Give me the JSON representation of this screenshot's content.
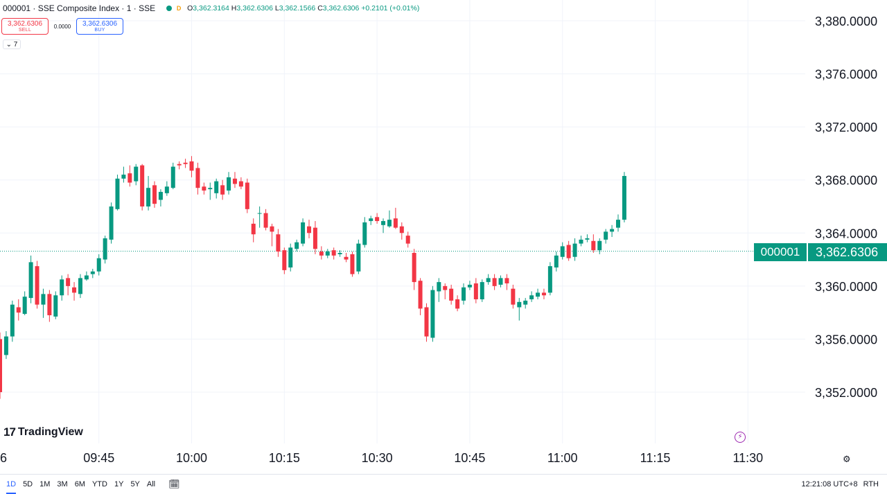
{
  "legend": {
    "symbol": "000001 · SSE Composite Index · 1 · SSE",
    "badge": "D",
    "o_label": "O",
    "o": "3,362.3164",
    "h_label": "H",
    "h": "3,362.6306",
    "l_label": "L",
    "l": "3,362.1566",
    "c_label": "C",
    "c": "3,362.6306",
    "change": "+0.2101 (+0.01%)",
    "status_color": "#089981"
  },
  "trade": {
    "sell_price": "3,362.6306",
    "sell_label": "SELL",
    "spread": "0.0000",
    "buy_price": "3,362.6306",
    "buy_label": "BUY"
  },
  "collapse_label": "7",
  "brand": "TradingView",
  "last_price": {
    "symbol": "000001",
    "value": "3,362.6306"
  },
  "footer": {
    "ranges": [
      "1D",
      "5D",
      "1M",
      "3M",
      "6M",
      "YTD",
      "1Y",
      "5Y",
      "All"
    ],
    "active_range": "1D",
    "clock": "12:21:08 UTC+8",
    "session": "RTH"
  },
  "chart_data": {
    "type": "candlestick",
    "up_color": "#089981",
    "down_color": "#f23645",
    "ylim": [
      3348,
      3382
    ],
    "yticks": [
      3352,
      3356,
      3360,
      3364,
      3368,
      3372,
      3376,
      3380
    ],
    "ytick_labels": [
      "3,352.0000",
      "3,356.0000",
      "3,360.0000",
      "3,364.0000",
      "3,368.0000",
      "3,372.0000",
      "3,376.0000",
      "3,380.0000"
    ],
    "xticks": [
      {
        "i": 16,
        "label": "09:45"
      },
      {
        "i": 31,
        "label": "10:00"
      },
      {
        "i": 46,
        "label": "10:15"
      },
      {
        "i": 61,
        "label": "10:30"
      },
      {
        "i": 76,
        "label": "10:45"
      },
      {
        "i": 91,
        "label": "11:00"
      },
      {
        "i": 106,
        "label": "11:15"
      },
      {
        "i": 121,
        "label": "11:30"
      }
    ],
    "first_label": "6",
    "last_price": 3362.6306,
    "candles": [
      [
        3356.0,
        3352.0,
        3356.5,
        3351.5
      ],
      [
        3354.8,
        3356.2,
        3356.6,
        3354.5
      ],
      [
        3356.2,
        3358.6,
        3358.9,
        3355.8
      ],
      [
        3358.4,
        3358.0,
        3359.0,
        3357.4
      ],
      [
        3357.9,
        3359.2,
        3359.6,
        3357.8
      ],
      [
        3359.1,
        3361.8,
        3362.3,
        3358.7
      ],
      [
        3361.5,
        3358.6,
        3361.9,
        3358.3
      ],
      [
        3358.6,
        3359.4,
        3359.8,
        3357.6
      ],
      [
        3359.4,
        3357.8,
        3359.7,
        3357.3
      ],
      [
        3357.7,
        3359.3,
        3359.6,
        3357.5
      ],
      [
        3359.3,
        3360.5,
        3360.8,
        3358.9
      ],
      [
        3360.6,
        3360.0,
        3360.9,
        3359.3
      ],
      [
        3359.9,
        3359.5,
        3360.3,
        3358.9
      ],
      [
        3359.4,
        3360.6,
        3360.9,
        3359.1
      ],
      [
        3360.5,
        3360.8,
        3361.1,
        3360.4
      ],
      [
        3360.9,
        3361.1,
        3361.3,
        3360.6
      ],
      [
        3361.1,
        3362.1,
        3362.4,
        3360.8
      ],
      [
        3362.0,
        3363.6,
        3363.8,
        3361.7
      ],
      [
        3363.5,
        3366.0,
        3366.3,
        3363.2
      ],
      [
        3365.8,
        3368.1,
        3368.4,
        3365.7
      ],
      [
        3368.1,
        3368.4,
        3369.0,
        3367.8
      ],
      [
        3368.5,
        3367.8,
        3369.1,
        3367.5
      ],
      [
        3367.9,
        3369.0,
        3369.2,
        3367.6
      ],
      [
        3369.1,
        3366.0,
        3369.2,
        3365.7
      ],
      [
        3366.0,
        3367.4,
        3368.3,
        3365.7
      ],
      [
        3367.6,
        3366.2,
        3367.9,
        3365.9
      ],
      [
        3366.5,
        3367.1,
        3367.3,
        3366.0
      ],
      [
        3367.0,
        3367.5,
        3367.9,
        3366.8
      ],
      [
        3367.4,
        3369.0,
        3369.3,
        3367.3
      ],
      [
        3369.2,
        3369.1,
        3369.4,
        3368.8
      ],
      [
        3369.3,
        3369.2,
        3369.6,
        3368.9
      ],
      [
        3369.4,
        3368.7,
        3369.8,
        3368.2
      ],
      [
        3368.9,
        3367.4,
        3369.3,
        3366.9
      ],
      [
        3367.5,
        3367.2,
        3367.8,
        3366.9
      ],
      [
        3367.3,
        3367.4,
        3367.8,
        3366.5
      ],
      [
        3367.0,
        3367.9,
        3368.1,
        3366.6
      ],
      [
        3367.6,
        3366.9,
        3368.0,
        3366.5
      ],
      [
        3367.2,
        3368.2,
        3368.6,
        3366.9
      ],
      [
        3368.1,
        3367.7,
        3368.6,
        3367.4
      ],
      [
        3367.9,
        3367.5,
        3368.2,
        3367.3
      ],
      [
        3367.8,
        3365.8,
        3368.1,
        3365.5
      ],
      [
        3364.7,
        3363.9,
        3365.1,
        3363.3
      ],
      [
        3365.5,
        3365.5,
        3366.0,
        3364.4
      ],
      [
        3365.5,
        3364.4,
        3365.8,
        3364.2
      ],
      [
        3364.5,
        3364.1,
        3364.7,
        3363.0
      ],
      [
        3363.9,
        3362.6,
        3364.3,
        3362.2
      ],
      [
        3362.7,
        3361.2,
        3362.9,
        3360.9
      ],
      [
        3361.4,
        3362.9,
        3363.2,
        3361.1
      ],
      [
        3362.8,
        3363.3,
        3363.5,
        3362.6
      ],
      [
        3363.2,
        3364.8,
        3365.1,
        3363.0
      ],
      [
        3364.5,
        3364.0,
        3365.0,
        3363.6
      ],
      [
        3364.4,
        3362.8,
        3364.9,
        3362.4
      ],
      [
        3362.6,
        3362.3,
        3363.0,
        3362.0
      ],
      [
        3362.3,
        3362.6,
        3362.8,
        3362.1
      ],
      [
        3362.7,
        3362.3,
        3362.9,
        3362.0
      ],
      [
        3362.4,
        3362.5,
        3362.7,
        3362.2
      ],
      [
        3362.2,
        3362.0,
        3362.5,
        3361.8
      ],
      [
        3362.4,
        3360.9,
        3362.6,
        3360.7
      ],
      [
        3361.1,
        3363.2,
        3363.5,
        3360.9
      ],
      [
        3363.1,
        3364.8,
        3365.2,
        3362.9
      ],
      [
        3364.9,
        3365.1,
        3365.3,
        3364.6
      ],
      [
        3365.2,
        3364.9,
        3365.5,
        3364.7
      ],
      [
        3364.6,
        3364.9,
        3365.1,
        3364.0
      ],
      [
        3364.5,
        3365.0,
        3365.7,
        3364.4
      ],
      [
        3365.1,
        3364.4,
        3365.9,
        3364.3
      ],
      [
        3364.5,
        3364.0,
        3364.8,
        3363.5
      ],
      [
        3363.8,
        3363.2,
        3364.1,
        3362.9
      ],
      [
        3362.5,
        3360.3,
        3362.8,
        3359.7
      ],
      [
        3360.4,
        3358.3,
        3360.6,
        3357.8
      ],
      [
        3358.4,
        3356.2,
        3358.7,
        3355.8
      ],
      [
        3356.1,
        3359.7,
        3360.0,
        3355.8
      ],
      [
        3359.6,
        3360.3,
        3360.6,
        3358.8
      ],
      [
        3360.0,
        3359.7,
        3360.2,
        3359.0
      ],
      [
        3359.8,
        3358.9,
        3360.1,
        3358.6
      ],
      [
        3359.0,
        3358.3,
        3359.3,
        3358.1
      ],
      [
        3358.9,
        3359.9,
        3360.2,
        3358.6
      ],
      [
        3359.9,
        3360.1,
        3360.4,
        3359.7
      ],
      [
        3360.2,
        3359.0,
        3360.6,
        3358.7
      ],
      [
        3359.0,
        3360.3,
        3360.5,
        3358.8
      ],
      [
        3360.3,
        3360.6,
        3360.9,
        3360.1
      ],
      [
        3360.6,
        3360.0,
        3360.9,
        3359.7
      ],
      [
        3360.1,
        3360.6,
        3360.8,
        3359.9
      ],
      [
        3360.6,
        3360.2,
        3360.9,
        3359.7
      ],
      [
        3359.8,
        3358.6,
        3360.1,
        3358.3
      ],
      [
        3358.4,
        3358.8,
        3359.1,
        3357.4
      ],
      [
        3358.6,
        3358.9,
        3359.1,
        3358.3
      ],
      [
        3359.0,
        3359.3,
        3359.6,
        3358.8
      ],
      [
        3359.2,
        3359.5,
        3359.8,
        3359.0
      ],
      [
        3359.5,
        3359.3,
        3359.8,
        3359.0
      ],
      [
        3359.5,
        3361.5,
        3361.8,
        3359.3
      ],
      [
        3361.4,
        3362.3,
        3362.6,
        3361.1
      ],
      [
        3362.2,
        3363.0,
        3363.3,
        3362.0
      ],
      [
        3363.1,
        3362.1,
        3363.4,
        3361.9
      ],
      [
        3362.2,
        3363.2,
        3363.6,
        3361.9
      ],
      [
        3363.2,
        3363.5,
        3363.8,
        3363.0
      ],
      [
        3363.5,
        3363.6,
        3363.9,
        3363.3
      ],
      [
        3363.4,
        3362.7,
        3363.9,
        3362.5
      ],
      [
        3362.7,
        3363.4,
        3363.6,
        3362.4
      ],
      [
        3363.5,
        3364.1,
        3364.3,
        3363.2
      ],
      [
        3364.1,
        3364.3,
        3364.6,
        3363.7
      ],
      [
        3364.4,
        3365.0,
        3365.4,
        3364.1
      ],
      [
        3365.0,
        3368.3,
        3368.6,
        3364.8
      ]
    ]
  }
}
